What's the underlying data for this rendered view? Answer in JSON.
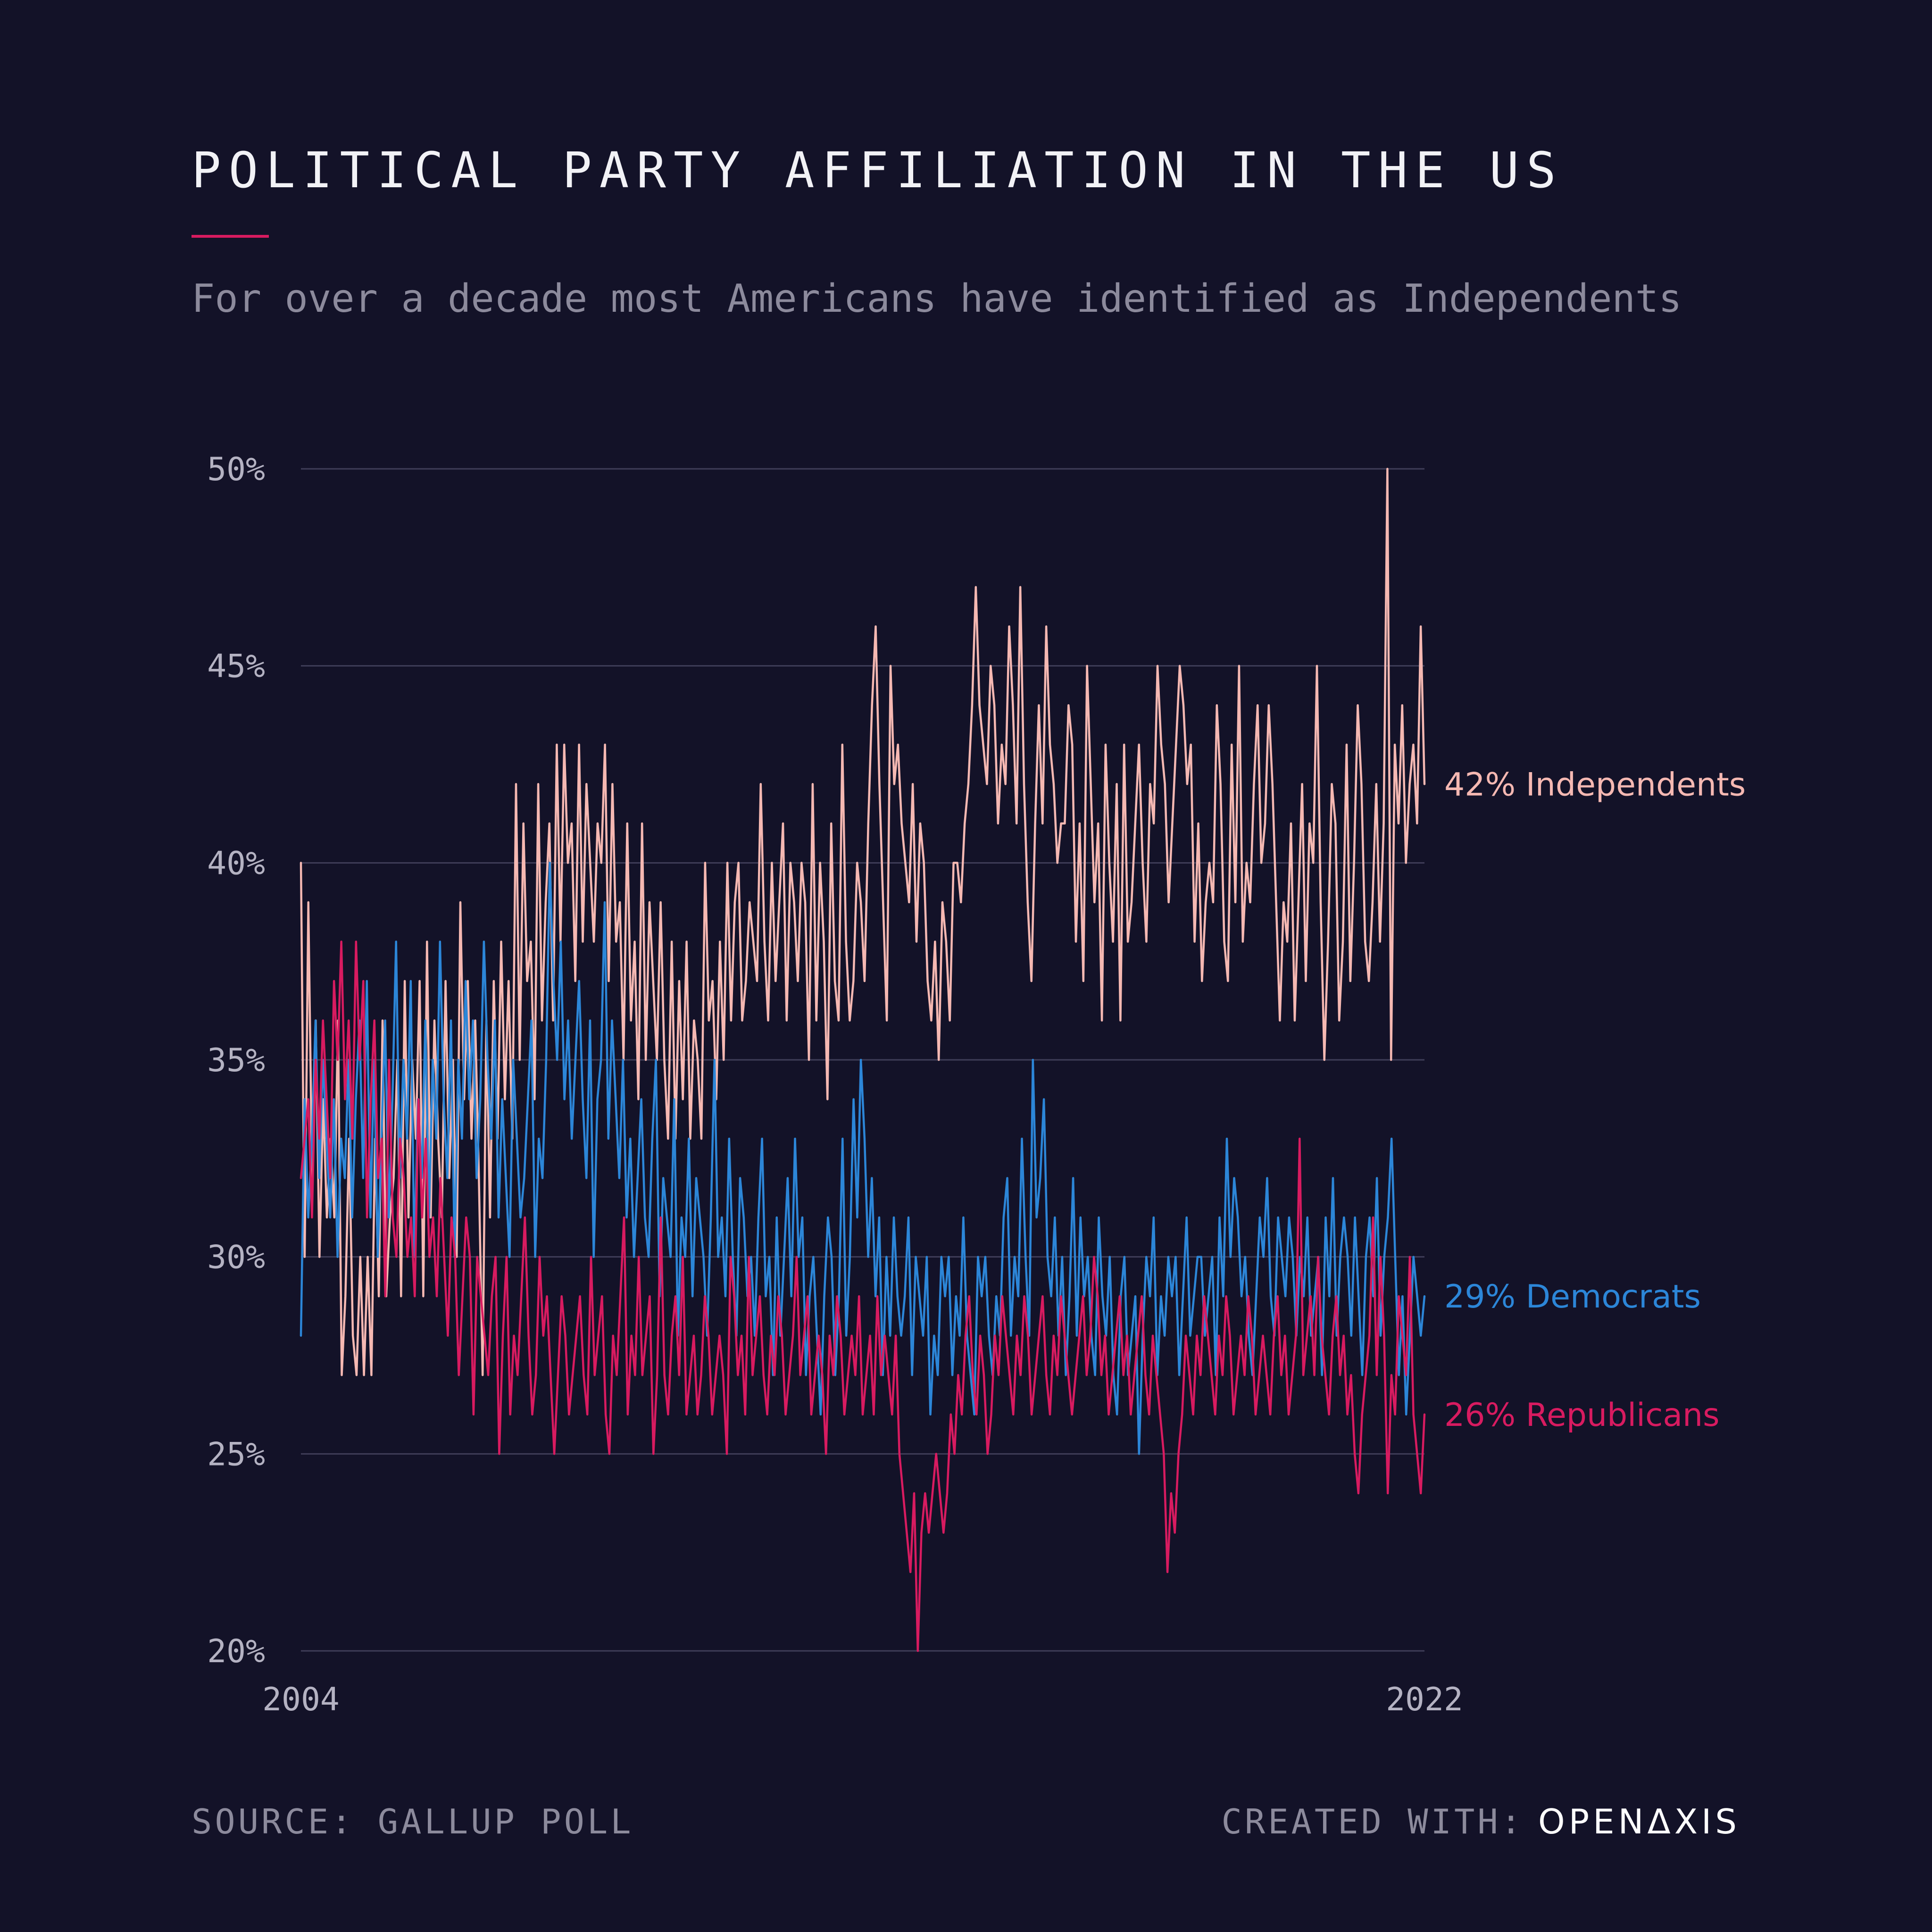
{
  "header": {
    "title": "POLITICAL PARTY AFFILIATION IN THE US",
    "subtitle": "For over a decade most Americans have identified as Independents"
  },
  "footer": {
    "source": "SOURCE: GALLUP POLL",
    "credit_prefix": "CREATED WITH:",
    "brand": "OPENΔXIS"
  },
  "colors": {
    "background": "#131228",
    "independents": "#f5b8b2",
    "democrats": "#2c86d8",
    "republicans": "#d81b60",
    "grid": "#3f3d58",
    "accent": "#d81b60"
  },
  "chart_data": {
    "type": "line",
    "title": "POLITICAL PARTY AFFILIATION IN THE US",
    "xlabel": "",
    "ylabel": "",
    "x_tick_labels": [
      "2004",
      "2022"
    ],
    "xlim": [
      2004,
      2022
    ],
    "ylim": [
      20,
      50
    ],
    "y_ticks": [
      20,
      25,
      30,
      35,
      40,
      45,
      50
    ],
    "y_tick_labels": [
      "20%",
      "25%",
      "30%",
      "35%",
      "40%",
      "45%",
      "50%"
    ],
    "grid": true,
    "legend": "end-of-line labels",
    "series": [
      {
        "name": "Independents",
        "end_label": "42% Independents",
        "color": "#f5b8b2",
        "values": [
          40,
          30,
          39,
          32,
          36,
          30,
          34,
          31,
          33,
          31,
          36,
          27,
          29,
          33,
          28,
          27,
          30,
          27,
          30,
          27,
          33,
          29,
          36,
          29,
          31,
          32,
          35,
          29,
          37,
          31,
          35,
          33,
          37,
          29,
          38,
          31,
          36,
          33,
          31,
          37,
          32,
          35,
          30,
          39,
          34,
          37,
          33,
          36,
          32,
          27,
          36,
          31,
          37,
          33,
          38,
          34,
          37,
          33,
          42,
          35,
          41,
          37,
          38,
          34,
          42,
          36,
          39,
          41,
          36,
          43,
          38,
          43,
          40,
          41,
          37,
          43,
          38,
          42,
          40,
          38,
          41,
          40,
          43,
          37,
          42,
          38,
          39,
          35,
          41,
          36,
          38,
          34,
          41,
          35,
          39,
          37,
          35,
          39,
          35,
          33,
          38,
          33,
          37,
          34,
          38,
          33,
          36,
          35,
          33,
          40,
          36,
          37,
          34,
          38,
          35,
          40,
          36,
          39,
          40,
          36,
          37,
          39,
          38,
          37,
          42,
          38,
          36,
          40,
          37,
          39,
          41,
          36,
          40,
          39,
          37,
          40,
          39,
          35,
          42,
          36,
          40,
          38,
          34,
          41,
          37,
          36,
          43,
          38,
          36,
          37,
          40,
          39,
          37,
          41,
          44,
          46,
          42,
          39,
          36,
          45,
          42,
          43,
          41,
          40,
          39,
          42,
          38,
          41,
          40,
          37,
          36,
          38,
          35,
          39,
          38,
          36,
          40,
          40,
          39,
          41,
          42,
          44,
          47,
          44,
          43,
          42,
          45,
          44,
          41,
          43,
          42,
          46,
          44,
          41,
          47,
          42,
          39,
          37,
          41,
          44,
          41,
          46,
          43,
          42,
          40,
          41,
          41,
          44,
          43,
          38,
          41,
          37,
          45,
          42,
          39,
          41,
          36,
          43,
          40,
          38,
          42,
          36,
          43,
          38,
          39,
          41,
          43,
          40,
          38,
          42,
          41,
          45,
          43,
          42,
          39,
          41,
          43,
          45,
          44,
          42,
          43,
          38,
          41,
          37,
          39,
          40,
          39,
          44,
          42,
          38,
          37,
          43,
          39,
          45,
          38,
          40,
          39,
          42,
          44,
          40,
          41,
          44,
          42,
          39,
          36,
          39,
          38,
          41,
          36,
          39,
          42,
          37,
          41,
          40,
          45,
          39,
          35,
          38,
          42,
          41,
          36,
          38,
          43,
          37,
          40,
          44,
          42,
          38,
          37,
          39,
          42,
          38,
          41,
          50,
          35,
          43,
          41,
          44,
          40,
          42,
          43,
          41,
          46,
          42
        ]
      },
      {
        "name": "Democrats",
        "end_label": "29% Democrats",
        "color": "#2c86d8",
        "values": [
          28,
          34,
          31,
          33,
          36,
          32,
          35,
          33,
          31,
          34,
          30,
          33,
          32,
          35,
          31,
          34,
          36,
          32,
          37,
          31,
          35,
          30,
          33,
          36,
          31,
          34,
          38,
          32,
          35,
          33,
          37,
          30,
          34,
          32,
          36,
          31,
          35,
          33,
          38,
          34,
          32,
          36,
          30,
          35,
          33,
          37,
          34,
          36,
          32,
          34,
          38,
          35,
          33,
          36,
          31,
          34,
          32,
          30,
          35,
          33,
          31,
          32,
          34,
          36,
          30,
          33,
          32,
          35,
          40,
          37,
          35,
          38,
          34,
          36,
          33,
          35,
          37,
          34,
          32,
          36,
          30,
          34,
          35,
          39,
          33,
          36,
          34,
          32,
          35,
          31,
          33,
          30,
          32,
          34,
          31,
          30,
          33,
          35,
          29,
          32,
          31,
          30,
          34,
          28,
          31,
          30,
          33,
          29,
          32,
          31,
          30,
          28,
          31,
          35,
          30,
          31,
          29,
          33,
          30,
          28,
          32,
          31,
          29,
          30,
          28,
          31,
          33,
          29,
          30,
          27,
          31,
          28,
          30,
          32,
          29,
          33,
          30,
          31,
          27,
          29,
          30,
          28,
          26,
          29,
          31,
          30,
          27,
          29,
          33,
          28,
          30,
          34,
          31,
          35,
          33,
          30,
          32,
          29,
          31,
          27,
          30,
          28,
          31,
          29,
          28,
          29,
          31,
          27,
          30,
          29,
          28,
          30,
          26,
          28,
          27,
          30,
          29,
          30,
          27,
          29,
          28,
          31,
          28,
          27,
          26,
          30,
          29,
          30,
          28,
          27,
          29,
          28,
          31,
          32,
          28,
          30,
          29,
          33,
          30,
          28,
          35,
          31,
          32,
          34,
          30,
          29,
          31,
          28,
          30,
          27,
          29,
          32,
          28,
          31,
          29,
          30,
          28,
          27,
          31,
          29,
          28,
          30,
          27,
          26,
          29,
          30,
          27,
          28,
          29,
          25,
          28,
          30,
          29,
          31,
          27,
          29,
          28,
          30,
          29,
          30,
          27,
          29,
          31,
          28,
          29,
          30,
          30,
          28,
          29,
          30,
          27,
          31,
          29,
          33,
          30,
          32,
          31,
          29,
          30,
          28,
          27,
          29,
          31,
          30,
          32,
          29,
          28,
          31,
          30,
          29,
          31,
          30,
          28,
          30,
          29,
          31,
          28,
          29,
          30,
          27,
          31,
          29,
          32,
          28,
          30,
          31,
          30,
          28,
          31,
          29,
          27,
          30,
          31,
          29,
          32,
          28,
          30,
          31,
          33,
          30,
          27,
          29,
          26,
          28,
          30,
          29,
          28,
          29
        ]
      },
      {
        "name": "Republicans",
        "end_label": "26% Republicans",
        "color": "#d81b60",
        "values": [
          32,
          33,
          34,
          31,
          35,
          33,
          36,
          34,
          32,
          37,
          35,
          38,
          34,
          36,
          33,
          38,
          35,
          37,
          31,
          34,
          36,
          32,
          33,
          29,
          35,
          31,
          30,
          33,
          32,
          30,
          31,
          29,
          34,
          31,
          33,
          30,
          31,
          29,
          32,
          30,
          28,
          31,
          30,
          27,
          29,
          31,
          30,
          26,
          30,
          29,
          28,
          27,
          29,
          30,
          25,
          28,
          30,
          26,
          28,
          27,
          29,
          31,
          28,
          26,
          27,
          30,
          28,
          29,
          27,
          25,
          27,
          29,
          28,
          26,
          27,
          28,
          29,
          27,
          26,
          30,
          27,
          28,
          29,
          26,
          25,
          28,
          27,
          29,
          31,
          26,
          28,
          27,
          30,
          27,
          28,
          29,
          25,
          27,
          31,
          27,
          26,
          28,
          29,
          27,
          30,
          26,
          27,
          28,
          26,
          27,
          29,
          28,
          26,
          27,
          28,
          27,
          25,
          30,
          29,
          27,
          28,
          26,
          30,
          27,
          28,
          29,
          27,
          26,
          28,
          27,
          29,
          28,
          26,
          27,
          28,
          30,
          27,
          28,
          29,
          26,
          27,
          28,
          27,
          25,
          28,
          27,
          29,
          28,
          26,
          27,
          28,
          27,
          29,
          26,
          27,
          28,
          26,
          29,
          27,
          28,
          27,
          26,
          28,
          25,
          24,
          23,
          22,
          24,
          20,
          23,
          24,
          23,
          24,
          25,
          24,
          23,
          24,
          26,
          25,
          27,
          26,
          28,
          29,
          27,
          26,
          28,
          27,
          25,
          26,
          28,
          27,
          29,
          28,
          27,
          26,
          28,
          27,
          29,
          28,
          26,
          27,
          28,
          29,
          27,
          26,
          28,
          27,
          29,
          28,
          27,
          26,
          27,
          28,
          29,
          27,
          28,
          30,
          29,
          27,
          28,
          26,
          27,
          28,
          29,
          27,
          28,
          26,
          27,
          28,
          29,
          27,
          26,
          28,
          27,
          26,
          25,
          22,
          24,
          23,
          25,
          26,
          28,
          27,
          26,
          28,
          27,
          29,
          28,
          27,
          26,
          28,
          27,
          29,
          28,
          26,
          27,
          28,
          27,
          29,
          28,
          26,
          27,
          28,
          27,
          26,
          28,
          29,
          27,
          28,
          26,
          27,
          28,
          33,
          27,
          28,
          29,
          27,
          30,
          28,
          27,
          26,
          28,
          29,
          27,
          28,
          26,
          27,
          25,
          24,
          26,
          27,
          28,
          31,
          27,
          30,
          28,
          24,
          27,
          26,
          29,
          28,
          27,
          30,
          26,
          25,
          24,
          26
        ]
      }
    ]
  }
}
